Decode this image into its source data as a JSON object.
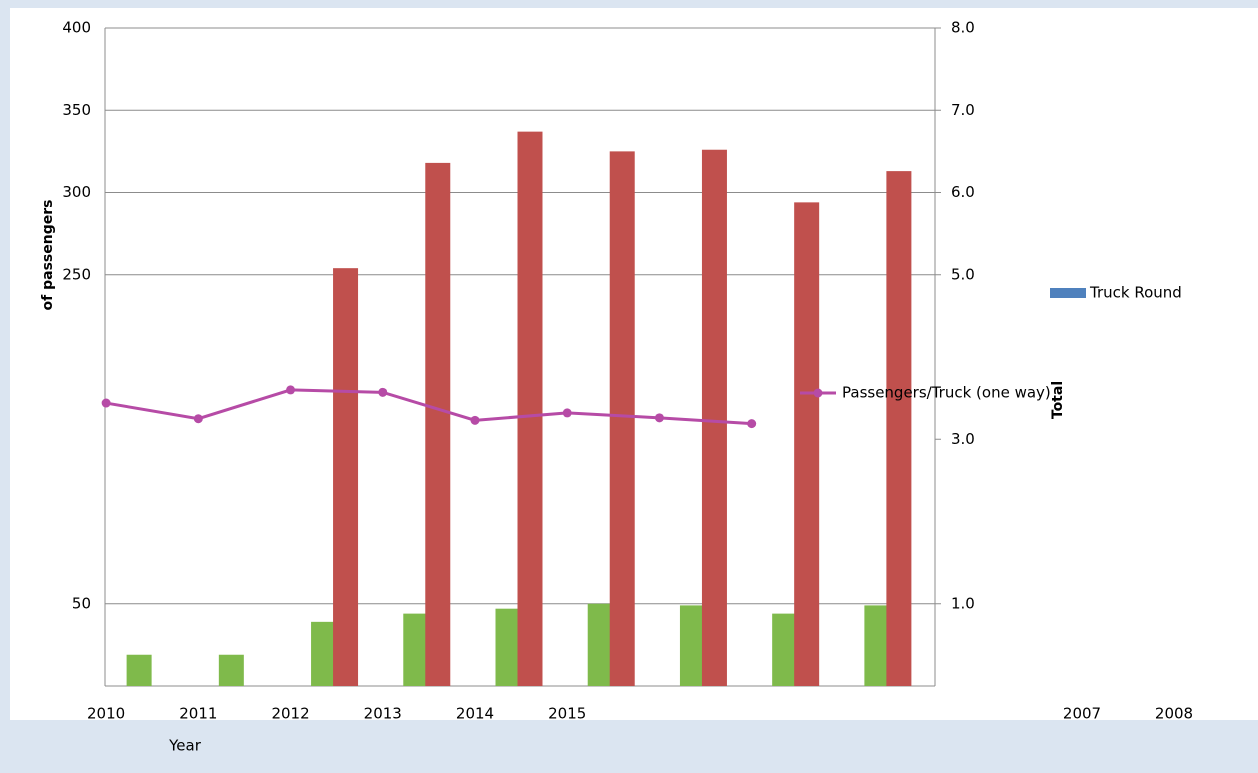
{
  "chart_data": {
    "type": "bar",
    "ylabel": "of passengers",
    "y2label": "Total",
    "xlabel": "Year",
    "categories": [
      "2010",
      "2011",
      "2012",
      "2013",
      "2014",
      "2015",
      null,
      null,
      null
    ],
    "annotations": [
      "2007",
      "2008"
    ],
    "ylim": [
      0,
      400
    ],
    "yticks": [
      50,
      250,
      300,
      350,
      400
    ],
    "y2lim": [
      0,
      8
    ],
    "y2ticks": [
      {
        "value": 1,
        "label": "1.0"
      },
      {
        "value": 3,
        "label": "3.0"
      },
      {
        "value": 5,
        "label": "5.0"
      },
      {
        "value": 6,
        "label": "6.0"
      },
      {
        "value": 7,
        "label": "7.0"
      },
      {
        "value": 8,
        "label": "8.0"
      }
    ],
    "grid": true,
    "bar_series": [
      {
        "color": "#7fba4b",
        "values": [
          19,
          19,
          39,
          44,
          47,
          50,
          49,
          44,
          49
        ]
      },
      {
        "color": "#c0504d",
        "values": [
          null,
          null,
          254,
          318,
          337,
          325,
          326,
          294,
          313
        ]
      },
      {
        "name": "Truck Round",
        "color": "#4f81bd",
        "values": [
          null,
          null,
          null,
          null,
          null,
          null,
          null,
          null,
          null
        ]
      }
    ],
    "line_series": [
      {
        "name": "Passengers/Truck (one way)",
        "color": "#b64ba6",
        "axis": "y2",
        "values": [
          3.44,
          3.25,
          3.6,
          3.57,
          3.23,
          3.32,
          3.26,
          3.19,
          null
        ]
      }
    ]
  }
}
